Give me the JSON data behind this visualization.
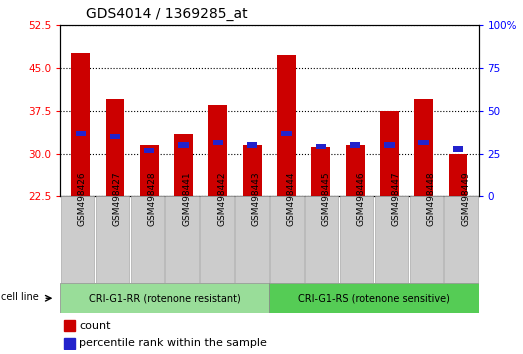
{
  "title": "GDS4014 / 1369285_at",
  "categories": [
    "GSM498426",
    "GSM498427",
    "GSM498428",
    "GSM498441",
    "GSM498442",
    "GSM498443",
    "GSM498444",
    "GSM498445",
    "GSM498446",
    "GSM498447",
    "GSM498448",
    "GSM498449"
  ],
  "count_values": [
    47.5,
    39.5,
    31.5,
    33.5,
    38.5,
    31.5,
    47.3,
    31.2,
    31.5,
    37.5,
    39.5,
    30.0
  ],
  "percentile_values": [
    33.5,
    33.0,
    30.5,
    31.5,
    32.0,
    31.5,
    33.5,
    31.2,
    31.5,
    31.5,
    32.0,
    30.8
  ],
  "ylim_left": [
    22.5,
    52.5
  ],
  "ylim_right": [
    0,
    100
  ],
  "yticks_left": [
    22.5,
    30.0,
    37.5,
    45.0,
    52.5
  ],
  "yticks_right": [
    0,
    25,
    50,
    75,
    100
  ],
  "group1_label": "CRI-G1-RR (rotenone resistant)",
  "group2_label": "CRI-G1-RS (rotenone sensitive)",
  "bar_color": "#cc0000",
  "percentile_color": "#2222cc",
  "group1_bg": "#99dd99",
  "group2_bg": "#55cc55",
  "xticklabel_bg": "#cccccc",
  "cell_line_label": "cell line",
  "legend_count": "count",
  "legend_percentile": "percentile rank within the sample",
  "title_fontsize": 10,
  "tick_fontsize": 7.5,
  "bar_width": 0.55,
  "plot_bg": "#ffffff"
}
